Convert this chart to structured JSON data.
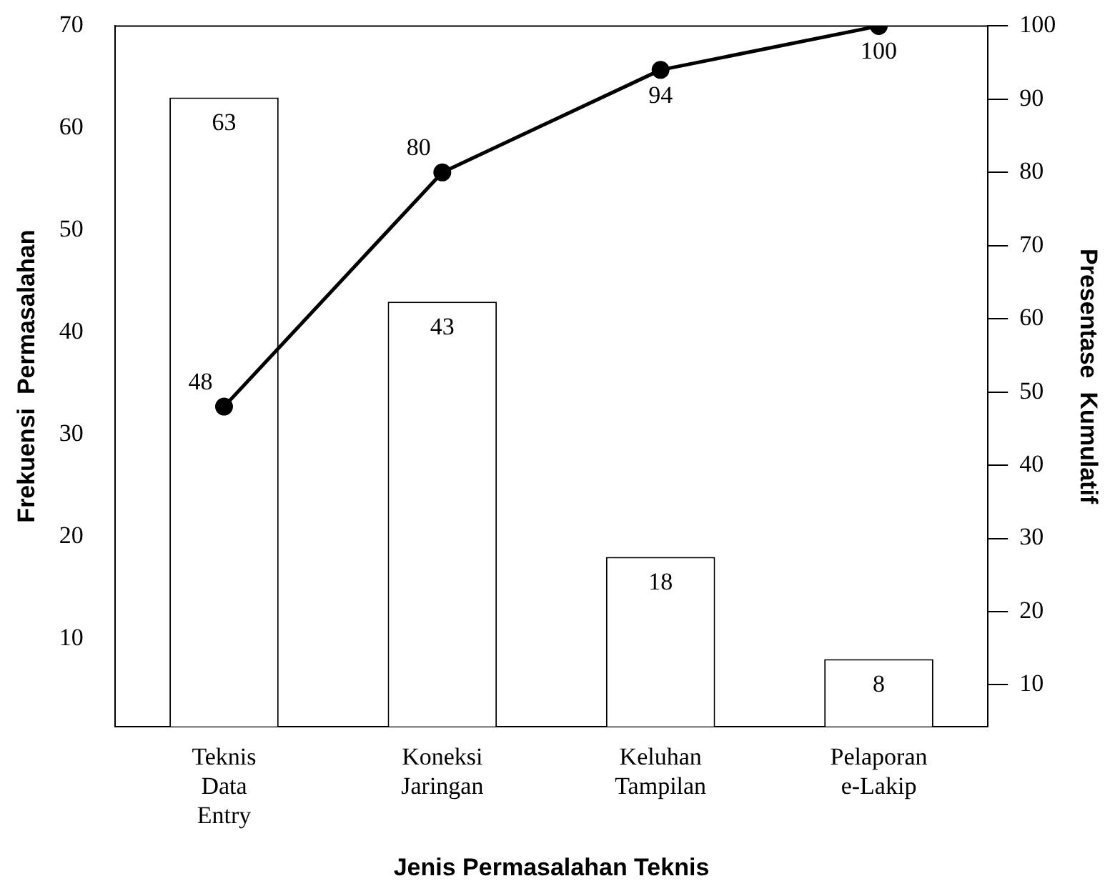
{
  "chart_data": {
    "type": "bar",
    "xlabel": "Jenis Permasalahan Teknis",
    "ylabel": "Frekuensi  Permasalahan",
    "y2label": "Presentase  Kumulatif",
    "categories": [
      "Teknis Data Entry",
      "Koneksi Jaringan",
      "Keluhan Tampilan",
      "Pelaporan e-Lakip"
    ],
    "series": [
      {
        "color": "#ffffff",
        "values": [
          63,
          43,
          18,
          8
        ]
      },
      {
        "type": "line",
        "axis": "y2",
        "color": "#000000",
        "values": [
          48,
          80,
          94,
          100
        ]
      }
    ],
    "ylim": [
      1.4,
      70
    ],
    "yticks": [
      10,
      20,
      30,
      40,
      50,
      60,
      70
    ],
    "y2lim": [
      4.3,
      100
    ],
    "y2ticks": [
      10,
      20,
      30,
      40,
      50,
      60,
      70,
      80,
      90,
      100
    ],
    "data_labels": true,
    "grid": false,
    "legend": false,
    "marker": "circle",
    "line_style": "solid"
  }
}
